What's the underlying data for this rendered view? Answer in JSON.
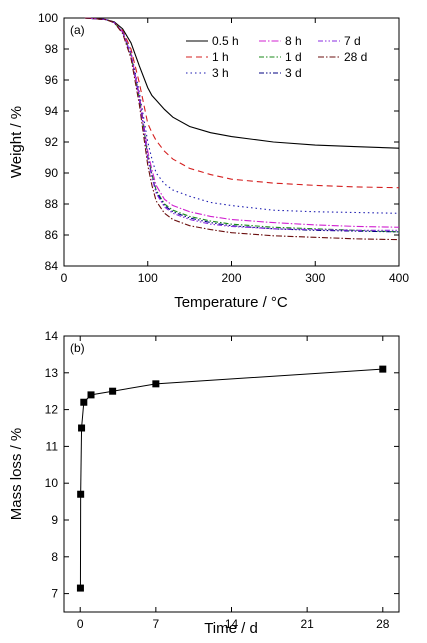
{
  "chart_data": [
    {
      "type": "line",
      "panel_label": "(a)",
      "xlabel": "Temperature / °C",
      "ylabel": "Weight / %",
      "xlim": [
        0,
        400
      ],
      "ylim": [
        84,
        100
      ],
      "xticks": [
        0,
        100,
        200,
        300,
        400
      ],
      "yticks": [
        84,
        86,
        88,
        90,
        92,
        94,
        96,
        98,
        100
      ],
      "legend_position": "top-right",
      "series": [
        {
          "name": "0.5 h",
          "color": "#000000",
          "dash": "solid",
          "x": [
            25,
            50,
            60,
            70,
            80,
            90,
            100,
            105,
            110,
            120,
            130,
            150,
            175,
            200,
            250,
            300,
            350,
            400
          ],
          "y": [
            100,
            99.9,
            99.75,
            99.3,
            98.4,
            96.9,
            95.5,
            95.0,
            94.7,
            94.1,
            93.6,
            93.0,
            92.6,
            92.35,
            92.0,
            91.8,
            91.7,
            91.6
          ]
        },
        {
          "name": "1 h",
          "color": "#d42020",
          "dash": "6,4",
          "x": [
            25,
            50,
            60,
            70,
            80,
            90,
            100,
            105,
            110,
            120,
            130,
            150,
            175,
            200,
            250,
            300,
            350,
            400
          ],
          "y": [
            100,
            99.9,
            99.7,
            99.2,
            98.0,
            95.8,
            93.2,
            92.6,
            92.1,
            91.4,
            90.9,
            90.3,
            89.9,
            89.6,
            89.35,
            89.2,
            89.1,
            89.05
          ]
        },
        {
          "name": "3 h",
          "color": "#1a1ab0",
          "dash": "1.5,3",
          "x": [
            25,
            50,
            60,
            70,
            80,
            90,
            100,
            105,
            110,
            120,
            130,
            150,
            175,
            200,
            250,
            300,
            350,
            400
          ],
          "y": [
            100,
            99.9,
            99.7,
            99.1,
            97.8,
            95.2,
            92.0,
            90.9,
            90.0,
            89.3,
            88.9,
            88.5,
            88.1,
            87.9,
            87.6,
            87.5,
            87.45,
            87.4
          ]
        },
        {
          "name": "8 h",
          "color": "#d020d0",
          "dash": "7,2,1.5,2",
          "x": [
            25,
            50,
            60,
            70,
            80,
            90,
            100,
            105,
            110,
            120,
            130,
            150,
            175,
            200,
            250,
            300,
            350,
            400
          ],
          "y": [
            100,
            99.9,
            99.7,
            99.1,
            97.7,
            95.0,
            91.4,
            90.2,
            89.2,
            88.3,
            87.9,
            87.5,
            87.2,
            87.0,
            86.8,
            86.65,
            86.55,
            86.5
          ]
        },
        {
          "name": "1 d",
          "color": "#1a8a1a",
          "dash": "5,2,1.5,2",
          "x": [
            25,
            50,
            60,
            70,
            80,
            90,
            100,
            105,
            110,
            120,
            130,
            150,
            175,
            200,
            250,
            300,
            350,
            400
          ],
          "y": [
            100,
            99.9,
            99.7,
            99.1,
            97.6,
            94.8,
            91.1,
            89.9,
            88.9,
            88.0,
            87.6,
            87.2,
            86.9,
            86.7,
            86.5,
            86.4,
            86.3,
            86.2
          ]
        },
        {
          "name": "3 d",
          "color": "#000080",
          "dash": "5,2,1.5,2,1.5,2",
          "x": [
            25,
            50,
            60,
            70,
            80,
            90,
            100,
            105,
            110,
            120,
            130,
            150,
            175,
            200,
            250,
            300,
            350,
            400
          ],
          "y": [
            100,
            99.9,
            99.7,
            99.1,
            97.6,
            94.8,
            91.0,
            89.8,
            88.8,
            87.9,
            87.5,
            87.1,
            86.8,
            86.6,
            86.4,
            86.3,
            86.25,
            86.2
          ]
        },
        {
          "name": "7 d",
          "color": "#8a2be2",
          "dash": "5,2,1.5,2,1.5,2",
          "x": [
            25,
            50,
            60,
            70,
            80,
            90,
            100,
            105,
            110,
            120,
            130,
            150,
            175,
            200,
            250,
            300,
            350,
            400
          ],
          "y": [
            100,
            99.9,
            99.7,
            99.1,
            97.6,
            94.7,
            90.9,
            89.7,
            88.7,
            87.8,
            87.4,
            87.0,
            86.7,
            86.55,
            86.4,
            86.35,
            86.3,
            86.3
          ]
        },
        {
          "name": "28 d",
          "color": "#6b0f0f",
          "dash": "6,2,1.5,2",
          "x": [
            25,
            50,
            60,
            70,
            80,
            90,
            100,
            105,
            110,
            120,
            130,
            150,
            175,
            200,
            250,
            300,
            350,
            400
          ],
          "y": [
            100,
            99.9,
            99.7,
            99.0,
            97.4,
            94.4,
            90.5,
            89.2,
            88.2,
            87.4,
            87.0,
            86.6,
            86.35,
            86.15,
            85.95,
            85.85,
            85.75,
            85.7
          ]
        }
      ]
    },
    {
      "type": "line",
      "panel_label": "(b)",
      "xlabel": "Time / d",
      "ylabel": "Mass loss / %",
      "xlim": [
        -1.5,
        29.5
      ],
      "ylim": [
        6.5,
        14
      ],
      "xticks": [
        0,
        7,
        14,
        21,
        28
      ],
      "yticks": [
        7,
        8,
        9,
        10,
        11,
        12,
        13,
        14
      ],
      "series": [
        {
          "name": "",
          "color": "#000000",
          "marker": "square",
          "x": [
            0.0208,
            0.0417,
            0.125,
            0.333,
            1,
            3,
            7,
            28
          ],
          "y": [
            7.15,
            9.7,
            11.5,
            12.2,
            12.4,
            12.5,
            12.7,
            13.1
          ]
        }
      ]
    }
  ]
}
